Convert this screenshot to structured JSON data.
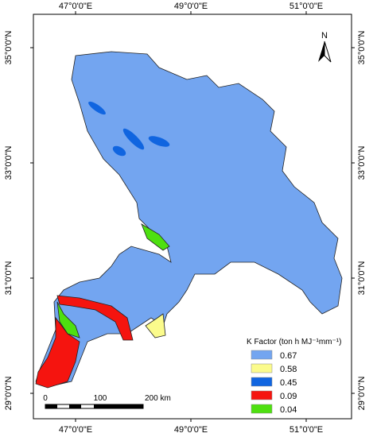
{
  "map": {
    "top_labels": [
      "47°0'0\"E",
      "49°0'0\"E",
      "51°0'0\"E"
    ],
    "bottom_labels": [
      "47°0'0\"E",
      "49°0'0\"E",
      "51°0'0\"E"
    ],
    "left_labels": [
      "35°0'0\"N",
      "33°0'0\"N",
      "31°0'0\"N",
      "29°0'0\"N"
    ],
    "right_labels": [
      "35°0'0\"N",
      "33°0'0\"N",
      "31°0'0\"N",
      "29°0'0\"N"
    ],
    "north": "N",
    "legend": {
      "title": "K Factor (ton h MJ⁻¹mm⁻¹)",
      "items": [
        {
          "label": "0.67",
          "color": "#73a5f0"
        },
        {
          "label": "0.58",
          "color": "#fbfb8c"
        },
        {
          "label": "0.45",
          "color": "#1065e0"
        },
        {
          "label": "0.09",
          "color": "#f5140f"
        },
        {
          "label": "0.04",
          "color": "#4ee010"
        }
      ]
    },
    "scale_bar": [
      "0",
      "100",
      "200 km"
    ]
  }
}
